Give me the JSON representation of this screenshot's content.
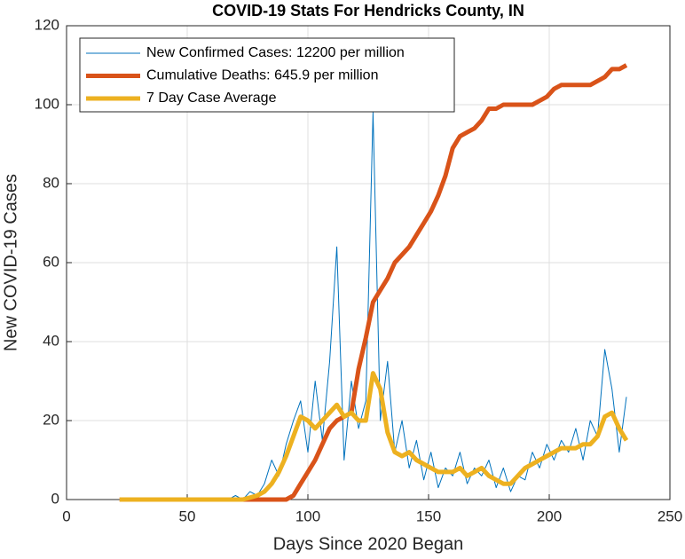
{
  "chart_data": {
    "type": "line",
    "title": "COVID-19 Stats For Hendricks County, IN",
    "xlabel": "Days Since 2020 Began",
    "ylabel": "New COVID-19 Cases",
    "x": [
      22,
      25,
      28,
      31,
      34,
      37,
      40,
      43,
      46,
      49,
      52,
      55,
      58,
      61,
      64,
      67,
      70,
      73,
      76,
      79,
      82,
      85,
      88,
      91,
      94,
      97,
      100,
      103,
      106,
      109,
      112,
      115,
      118,
      121,
      124,
      127,
      130,
      133,
      136,
      139,
      142,
      145,
      148,
      151,
      154,
      157,
      160,
      163,
      166,
      169,
      172,
      175,
      178,
      181,
      184,
      187,
      190,
      193,
      196,
      199,
      202,
      205,
      208,
      211,
      214,
      217,
      220,
      223,
      226,
      229,
      232
    ],
    "series": [
      {
        "name": "New Confirmed Cases: 12200 per million",
        "color": "#0072bd",
        "values": [
          0,
          0,
          0,
          0,
          0,
          0,
          0,
          0,
          0,
          0,
          0,
          0,
          0,
          0,
          0,
          0,
          1,
          0,
          2,
          1,
          4,
          10,
          6,
          14,
          20,
          25,
          12,
          30,
          15,
          35,
          64,
          10,
          30,
          18,
          25,
          98,
          20,
          35,
          12,
          20,
          8,
          15,
          5,
          12,
          3,
          8,
          6,
          12,
          4,
          8,
          6,
          10,
          3,
          8,
          2,
          6,
          5,
          12,
          8,
          14,
          10,
          15,
          12,
          18,
          10,
          20,
          16,
          38,
          28,
          12,
          26
        ]
      },
      {
        "name": "Cumulative Deaths: 645.9 per million",
        "color": "#d95319",
        "values": [
          0,
          0,
          0,
          0,
          0,
          0,
          0,
          0,
          0,
          0,
          0,
          0,
          0,
          0,
          0,
          0,
          0,
          0,
          0,
          0,
          0,
          0,
          0,
          0,
          1,
          4,
          7,
          10,
          14,
          18,
          20,
          21,
          22,
          33,
          41,
          50,
          53,
          56,
          60,
          62,
          64,
          67,
          70,
          73,
          77,
          82,
          89,
          92,
          93,
          94,
          96,
          99,
          99,
          100,
          100,
          100,
          100,
          100,
          101,
          102,
          104,
          105,
          105,
          105,
          105,
          105,
          106,
          107,
          109,
          109,
          110
        ]
      },
      {
        "name": "7 Day Case Average",
        "color": "#edb120",
        "values": [
          0,
          0,
          0,
          0,
          0,
          0,
          0,
          0,
          0,
          0,
          0,
          0,
          0,
          0,
          0,
          0,
          0,
          0,
          0.5,
          1,
          2,
          4,
          7,
          11,
          16,
          21,
          20,
          18,
          20,
          22,
          24,
          21,
          22,
          20,
          20,
          32,
          28,
          17,
          12,
          11,
          12,
          10,
          9,
          8,
          7,
          7,
          7,
          8,
          6,
          7,
          8,
          6,
          5,
          4,
          4,
          6,
          8,
          9,
          10,
          11,
          12,
          13,
          13,
          13,
          14,
          14,
          16,
          21,
          22,
          18,
          15
        ]
      }
    ],
    "xlim": [
      0,
      250
    ],
    "xticks": [
      0,
      50,
      100,
      150,
      200,
      250
    ],
    "ylim": [
      0,
      120
    ],
    "yticks": [
      0,
      20,
      40,
      60,
      80,
      100,
      120
    ],
    "grid": true,
    "legend": "top-left"
  }
}
